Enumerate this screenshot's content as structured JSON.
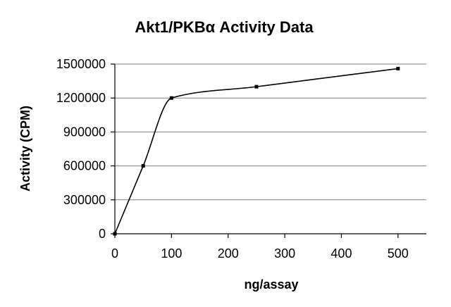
{
  "chart_data": {
    "type": "line",
    "title": "Akt1/PKBα Activity Data",
    "xlabel": "ng/assay",
    "ylabel": "Activity (CPM)",
    "x": [
      0,
      50,
      100,
      250,
      500
    ],
    "series": [
      {
        "values": [
          0,
          600000,
          1200000,
          1300000,
          1460000
        ]
      }
    ],
    "xlim": [
      0,
      550
    ],
    "ylim": [
      0,
      1500000
    ],
    "x_ticks": [
      0,
      100,
      200,
      300,
      400,
      500
    ],
    "y_ticks": [
      0,
      300000,
      600000,
      900000,
      1200000,
      1500000
    ],
    "x_tick_labels": [
      "0",
      "100",
      "200",
      "300",
      "400",
      "500"
    ],
    "y_tick_labels": [
      "0",
      "300000",
      "600000",
      "900000",
      "1200000",
      "1500000"
    ],
    "grid": "horizontal",
    "legend": "none",
    "smoothed": true,
    "colors": {
      "line": "#000000",
      "grid": "#7f7f7f",
      "background": "#ffffff"
    }
  }
}
